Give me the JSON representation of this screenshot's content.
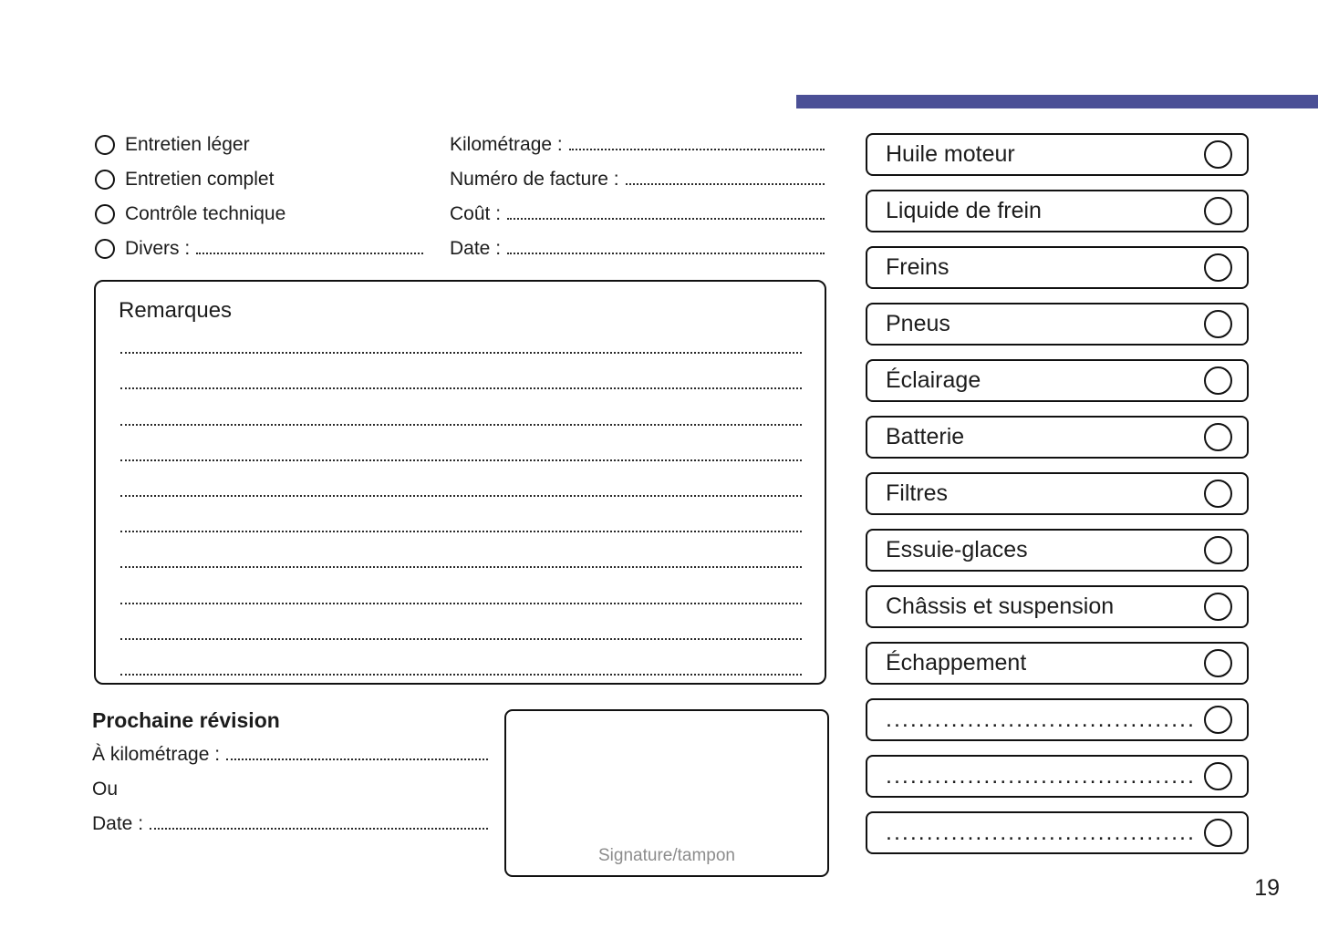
{
  "accent_color": "#4B5096",
  "page_number": "19",
  "service_types": {
    "options": [
      {
        "label": "Entretien léger"
      },
      {
        "label": "Entretien complet"
      },
      {
        "label": "Contrôle technique"
      },
      {
        "label": "Divers :"
      }
    ]
  },
  "invoice_fields": [
    {
      "label": "Kilométrage :"
    },
    {
      "label": "Numéro de facture :"
    },
    {
      "label": "Coût :"
    },
    {
      "label": "Date :"
    }
  ],
  "remarks": {
    "title": "Remarques",
    "line_count": 10
  },
  "next_service": {
    "title": "Prochaine révision",
    "km_label": "À kilométrage :",
    "or_label": "Ou",
    "date_label": "Date :"
  },
  "signature": {
    "label": "Signature/tampon"
  },
  "checklist": [
    {
      "label": "Huile moteur"
    },
    {
      "label": "Liquide de frein"
    },
    {
      "label": "Freins"
    },
    {
      "label": "Pneus"
    },
    {
      "label": "Éclairage"
    },
    {
      "label": "Batterie"
    },
    {
      "label": "Filtres"
    },
    {
      "label": "Essuie-glaces"
    },
    {
      "label": "Châssis et suspension"
    },
    {
      "label": "Échappement"
    },
    {
      "label": "......................................"
    },
    {
      "label": "......................................"
    },
    {
      "label": "......................................"
    }
  ]
}
